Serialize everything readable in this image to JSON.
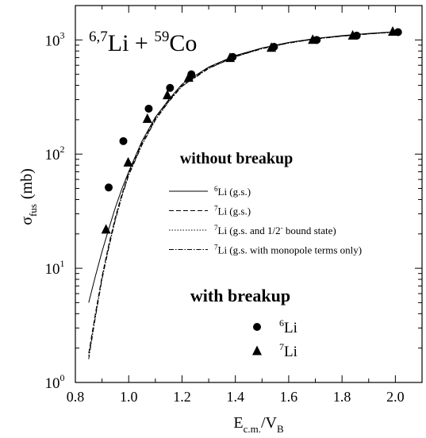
{
  "chart_data": {
    "type": "scatter",
    "title": {
      "prefix_sup": "6,7",
      "element1": "Li",
      "plus": " + ",
      "mass_sup": "59",
      "element2": "Co"
    },
    "xlabel": {
      "base": "E",
      "sub": "c.m.",
      "slash": "/V",
      "sub2": "B"
    },
    "ylabel": {
      "base": "σ",
      "sub": "fus",
      "unit": "(mb)"
    },
    "x_range": [
      0.8,
      2.1
    ],
    "y_range": [
      1,
      2000
    ],
    "y_scale": "log",
    "x_ticks": [
      "0.8",
      "1.0",
      "1.2",
      "1.4",
      "1.6",
      "1.8",
      "2.0"
    ],
    "y_ticks": [
      {
        "base": "10",
        "exp": "0"
      },
      {
        "base": "10",
        "exp": "1"
      },
      {
        "base": "10",
        "exp": "2"
      },
      {
        "base": "10",
        "exp": "3"
      }
    ],
    "legend_title_without": "without breakup",
    "legend_title_with": "with breakup",
    "line_series": [
      {
        "sup": "6",
        "label": "Li (g.s.)",
        "dash": "",
        "x": [
          0.85,
          0.875,
          0.9,
          0.925,
          0.95,
          0.975,
          1.0,
          1.05,
          1.1,
          1.15,
          1.2,
          1.3,
          1.4,
          1.5,
          1.6,
          1.7,
          1.8,
          1.9,
          2.0
        ],
        "y": [
          5.0,
          8.5,
          14,
          22,
          34,
          50,
          70,
          130,
          210,
          300,
          410,
          580,
          730,
          850,
          950,
          1030,
          1090,
          1140,
          1180
        ]
      },
      {
        "sup": "7",
        "label": "Li (g.s.)",
        "dash": "6,3",
        "x": [
          0.85,
          0.875,
          0.9,
          0.925,
          0.95,
          0.975,
          1.0,
          1.05,
          1.1,
          1.15,
          1.2,
          1.3,
          1.4,
          1.5,
          1.6,
          1.7,
          1.8,
          1.9,
          2.0
        ],
        "y": [
          1.8,
          4.0,
          8.5,
          16,
          28,
          45,
          68,
          125,
          205,
          295,
          400,
          570,
          720,
          845,
          945,
          1025,
          1085,
          1135,
          1175
        ]
      },
      {
        "sup": "7",
        "label": "Li (g.s. and 1/2",
        "label_sup": "-",
        "label_tail": " bound state)",
        "dash": "1.5,2",
        "x": [
          0.85,
          0.875,
          0.9,
          0.925,
          0.95,
          0.975,
          1.0,
          1.05,
          1.1,
          1.15,
          1.2,
          1.3,
          1.4,
          1.5,
          1.6,
          1.7,
          1.8,
          1.9,
          2.0
        ],
        "y": [
          1.7,
          3.8,
          8.2,
          15.5,
          27,
          44,
          66,
          122,
          200,
          290,
          395,
          565,
          715,
          840,
          940,
          1020,
          1080,
          1130,
          1170
        ]
      },
      {
        "sup": "7",
        "label": "Li (g.s. with monopole terms only)",
        "dash": "6,2,1.5,2",
        "x": [
          0.85,
          0.875,
          0.9,
          0.925,
          0.95,
          0.975,
          1.0,
          1.05,
          1.1,
          1.15,
          1.2,
          1.3,
          1.4,
          1.5,
          1.6,
          1.7,
          1.8,
          1.9,
          2.0
        ],
        "y": [
          1.6,
          3.7,
          8.0,
          15,
          26.5,
          43,
          65,
          120,
          198,
          288,
          392,
          562,
          712,
          838,
          938,
          1018,
          1078,
          1128,
          1168
        ]
      }
    ],
    "marker_series": [
      {
        "sup": "6",
        "label": "Li",
        "marker": "circle",
        "x": [
          0.925,
          0.98,
          1.075,
          1.155,
          1.235,
          1.39,
          1.545,
          1.705,
          1.855,
          2.01
        ],
        "y": [
          51,
          130,
          250,
          380,
          500,
          710,
          870,
          1000,
          1090,
          1170
        ]
      },
      {
        "sup": "7",
        "label": "Li",
        "marker": "triangle",
        "x": [
          0.915,
          0.998,
          1.07,
          1.145,
          1.225,
          1.38,
          1.535,
          1.69,
          1.84,
          1.99
        ],
        "y": [
          22,
          85,
          205,
          330,
          470,
          700,
          860,
          1010,
          1100,
          1190
        ]
      }
    ]
  }
}
